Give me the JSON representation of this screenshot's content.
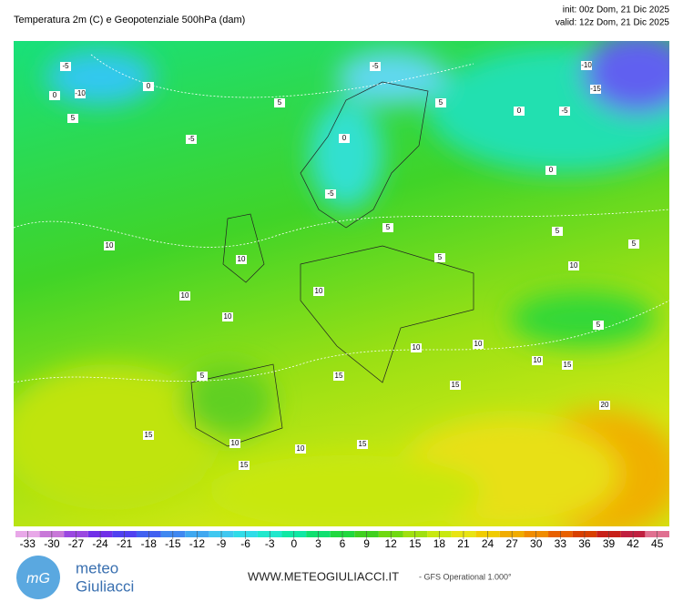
{
  "header": {
    "title": "Temperatura 2m (C) e Geopotenziale 500hPa (dam)",
    "init": "init: 00z Dom, 21 Dic 2025",
    "valid": "valid: 12z Dom, 21 Dic 2025"
  },
  "map": {
    "contour_labels": [
      -5,
      0,
      -10,
      5,
      0,
      -5,
      5,
      -5,
      5,
      0,
      -10,
      -15,
      -5,
      0,
      0,
      -5,
      5,
      5,
      5,
      5,
      10,
      10,
      10,
      10,
      10,
      10,
      5,
      10,
      10,
      10,
      15,
      15,
      5,
      15,
      10,
      10,
      15,
      15,
      20,
      15
    ]
  },
  "colorbar": {
    "ticks": [
      -33,
      -30,
      -27,
      -24,
      -21,
      -18,
      -15,
      -12,
      -9,
      -6,
      -3,
      0,
      3,
      6,
      9,
      12,
      15,
      18,
      21,
      24,
      27,
      30,
      33,
      36,
      39,
      42,
      45
    ],
    "colors": [
      "#e8a8e8",
      "#c878d8",
      "#9a48e0",
      "#7030e8",
      "#5040f0",
      "#4060f0",
      "#4088f0",
      "#40a8f0",
      "#40c8f0",
      "#30dce8",
      "#20e8cc",
      "#10e8a4",
      "#10e070",
      "#20d840",
      "#40d020",
      "#70d812",
      "#a0e010",
      "#c8e810",
      "#e8e414",
      "#f0cc00",
      "#f0ac00",
      "#f08c00",
      "#e86000",
      "#d84000",
      "#c82018",
      "#c02040",
      "#e07090"
    ]
  },
  "footer": {
    "logo_top": "meteo",
    "logo_bottom": "Giuliacci",
    "site": "WWW.METEOGIULIACCI.IT",
    "model": "- GFS Operational 1.000°"
  }
}
